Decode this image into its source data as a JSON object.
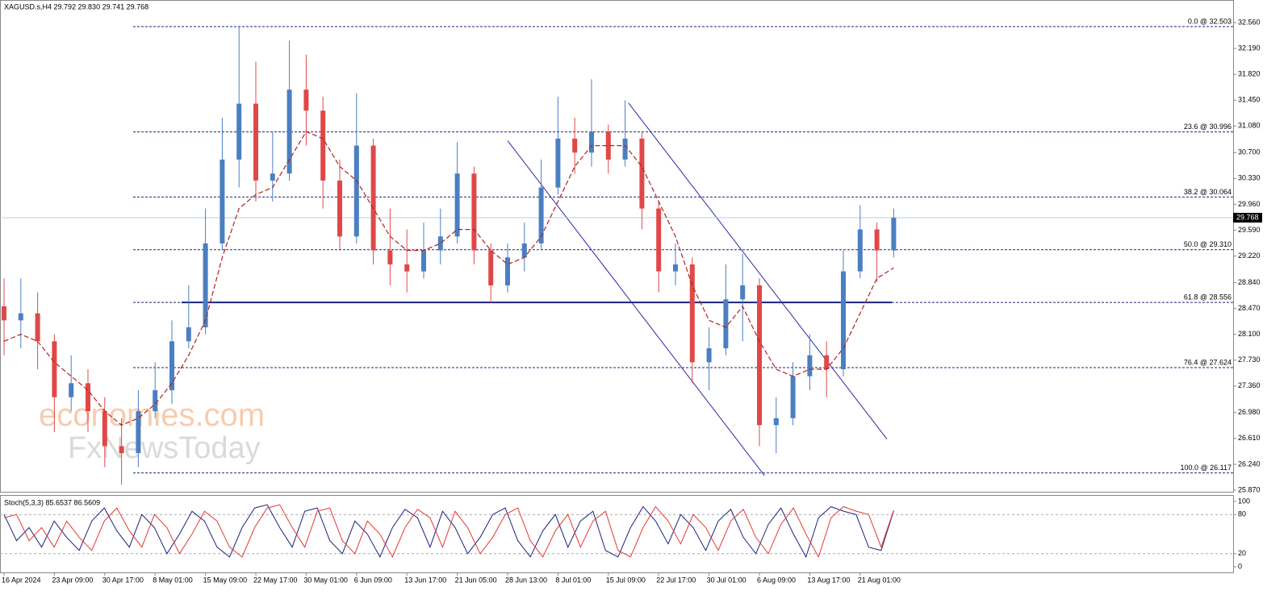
{
  "chart_data": {
    "type": "candlestick",
    "title": "XAGUSD.s,H4  29.792 29.830 29.741 29.768",
    "watermark": [
      "economies.com",
      "FxNewsToday"
    ],
    "categories": [
      "16 Apr 2024",
      null,
      null,
      "23 Apr 09:00",
      null,
      null,
      "30 Apr 17:00",
      null,
      null,
      "8 May 01:00",
      null,
      null,
      "15 May 09:00",
      null,
      null,
      "22 May 17:00",
      null,
      null,
      "30 May 01:00",
      null,
      null,
      "6 Jun 09:00",
      null,
      null,
      "13 Jun 17:00",
      null,
      null,
      "21 Jun 05:00",
      null,
      null,
      "28 Jun 13:00",
      null,
      null,
      "8 Jul 01:00",
      null,
      null,
      "15 Jul 09:00",
      null,
      null,
      "22 Jul 17:00",
      null,
      null,
      "30 Jul 01:00",
      null,
      null,
      "6 Aug 09:00",
      null,
      null,
      "13 Aug 17:00",
      null,
      null,
      "21 Aug 01:00",
      null,
      null
    ],
    "ohlc": [
      [
        28.5,
        28.9,
        27.8,
        28.3
      ],
      [
        28.3,
        28.9,
        27.9,
        28.4
      ],
      [
        28.4,
        28.7,
        27.6,
        28.0
      ],
      [
        28.0,
        28.1,
        26.7,
        27.2
      ],
      [
        27.2,
        27.8,
        27.0,
        27.4
      ],
      [
        27.4,
        27.6,
        26.7,
        27.0
      ],
      [
        27.0,
        27.2,
        26.2,
        26.5
      ],
      [
        26.5,
        26.9,
        25.95,
        26.4
      ],
      [
        26.4,
        27.3,
        26.2,
        27.0
      ],
      [
        27.0,
        27.7,
        26.9,
        27.3
      ],
      [
        27.3,
        28.3,
        27.1,
        28.0
      ],
      [
        28.0,
        28.8,
        27.9,
        28.2
      ],
      [
        28.2,
        29.9,
        28.1,
        29.4
      ],
      [
        29.4,
        31.2,
        29.3,
        30.6
      ],
      [
        30.6,
        32.5,
        30.2,
        31.4
      ],
      [
        31.4,
        32.0,
        30.0,
        30.3
      ],
      [
        30.3,
        31.0,
        30.0,
        30.4
      ],
      [
        30.4,
        32.3,
        30.3,
        31.6
      ],
      [
        31.6,
        32.1,
        30.8,
        31.3
      ],
      [
        31.3,
        31.5,
        29.9,
        30.3
      ],
      [
        30.3,
        30.6,
        29.3,
        29.5
      ],
      [
        29.5,
        31.55,
        29.4,
        30.8
      ],
      [
        30.8,
        30.9,
        29.1,
        29.3
      ],
      [
        29.3,
        29.9,
        28.8,
        29.1
      ],
      [
        29.1,
        29.6,
        28.7,
        29.0
      ],
      [
        29.0,
        29.7,
        28.9,
        29.3
      ],
      [
        29.3,
        29.9,
        29.1,
        29.5
      ],
      [
        29.5,
        30.85,
        29.4,
        30.4
      ],
      [
        30.4,
        30.5,
        29.1,
        29.3
      ],
      [
        29.3,
        29.4,
        28.55,
        28.8
      ],
      [
        28.8,
        29.4,
        28.7,
        29.2
      ],
      [
        29.2,
        29.7,
        29.0,
        29.4
      ],
      [
        29.4,
        30.6,
        29.3,
        30.2
      ],
      [
        30.2,
        31.5,
        30.1,
        30.9
      ],
      [
        30.9,
        31.2,
        30.4,
        30.7
      ],
      [
        30.7,
        31.75,
        30.5,
        31.0
      ],
      [
        31.0,
        31.1,
        30.4,
        30.6
      ],
      [
        30.6,
        31.45,
        30.5,
        30.9
      ],
      [
        30.9,
        31.0,
        29.6,
        29.9
      ],
      [
        29.9,
        30.0,
        28.7,
        29.0
      ],
      [
        29.0,
        29.4,
        28.8,
        29.1
      ],
      [
        29.1,
        29.2,
        27.4,
        27.7
      ],
      [
        27.7,
        28.2,
        27.3,
        27.9
      ],
      [
        27.9,
        29.1,
        27.8,
        28.6
      ],
      [
        28.6,
        29.25,
        28.0,
        28.8
      ],
      [
        28.8,
        28.9,
        26.5,
        26.8
      ],
      [
        26.8,
        27.2,
        26.4,
        26.9
      ],
      [
        26.9,
        27.7,
        26.8,
        27.5
      ],
      [
        27.5,
        28.1,
        27.3,
        27.8
      ],
      [
        27.8,
        28.0,
        27.2,
        27.6
      ],
      [
        27.6,
        29.3,
        27.5,
        29.0
      ],
      [
        29.0,
        29.95,
        28.9,
        29.6
      ],
      [
        29.6,
        29.7,
        28.85,
        29.3
      ],
      [
        29.3,
        29.9,
        29.2,
        29.768
      ]
    ],
    "up_color": "#4a7fc1",
    "down_color": "#e04848",
    "moving_average": {
      "color": "#b22222",
      "values": [
        28.0,
        28.1,
        28.0,
        27.7,
        27.5,
        27.3,
        27.0,
        26.8,
        26.9,
        27.1,
        27.4,
        27.8,
        28.3,
        29.2,
        29.9,
        30.1,
        30.2,
        30.6,
        31.0,
        30.9,
        30.5,
        30.3,
        29.9,
        29.5,
        29.3,
        29.3,
        29.4,
        29.6,
        29.6,
        29.3,
        29.1,
        29.2,
        29.5,
        30.0,
        30.5,
        30.8,
        30.8,
        30.8,
        30.5,
        30.0,
        29.5,
        28.8,
        28.3,
        28.2,
        28.5,
        28.0,
        27.6,
        27.5,
        27.6,
        27.6,
        27.9,
        28.4,
        28.9,
        29.05
      ]
    },
    "ylim": [
      25.847,
      32.883
    ],
    "yticks": [
      {
        "value": 25.87,
        "label": "25.870"
      },
      {
        "value": 26.24,
        "label": "26.240"
      },
      {
        "value": 26.61,
        "label": "26.610"
      },
      {
        "value": 26.98,
        "label": "26.980"
      },
      {
        "value": 27.36,
        "label": "27.360"
      },
      {
        "value": 27.73,
        "label": "27.730"
      },
      {
        "value": 28.1,
        "label": "28.100"
      },
      {
        "value": 28.47,
        "label": "28.470"
      },
      {
        "value": 28.84,
        "label": "28.840"
      },
      {
        "value": 29.22,
        "label": "29.220"
      },
      {
        "value": 29.59,
        "label": "29.590"
      },
      {
        "value": 29.96,
        "label": "29.960"
      },
      {
        "value": 30.33,
        "label": "30.330"
      },
      {
        "value": 30.7,
        "label": "30.700"
      },
      {
        "value": 31.08,
        "label": "31.080"
      },
      {
        "value": 31.45,
        "label": "31.450"
      },
      {
        "value": 31.82,
        "label": "31.820"
      },
      {
        "value": 32.19,
        "label": "32.190"
      },
      {
        "value": 32.56,
        "label": "32.560"
      }
    ],
    "last_price": 29.768,
    "fib_color": "#1a237e",
    "fib_levels": [
      {
        "value": 32.503,
        "label": "0.0 @ 32.503"
      },
      {
        "value": 30.996,
        "label": "23.6 @ 30.996"
      },
      {
        "value": 30.064,
        "label": "38.2 @ 30.064"
      },
      {
        "value": 29.31,
        "label": "50.0 @ 29.310"
      },
      {
        "value": 28.556,
        "label": "61.8 @ 28.556"
      },
      {
        "value": 27.624,
        "label": "76.4 @ 27.624"
      },
      {
        "value": 26.117,
        "label": "100.0 @ 26.117"
      }
    ],
    "support": 28.556,
    "trendlines": [
      {
        "x": [
          30,
          45.3
        ],
        "y": [
          30.87,
          26.08
        ]
      },
      {
        "x": [
          37.2,
          52.6
        ],
        "y": [
          31.41,
          26.6
        ]
      }
    ],
    "stochastic": {
      "label": "Stoch(5,3,3) 85.6537 86.5609",
      "ylim": [
        0,
        100
      ],
      "yticks": [
        0,
        20,
        80,
        100
      ],
      "levels": [
        20,
        80
      ],
      "series": [
        {
          "name": "main",
          "color": "#1a237e",
          "values": [
            80,
            40,
            60,
            30,
            70,
            45,
            25,
            70,
            90,
            55,
            30,
            80,
            60,
            20,
            50,
            85,
            70,
            30,
            15,
            60,
            90,
            95,
            60,
            30,
            85,
            90,
            40,
            20,
            70,
            50,
            15,
            60,
            88,
            75,
            30,
            85,
            60,
            20,
            45,
            80,
            90,
            40,
            15,
            55,
            80,
            30,
            70,
            85,
            25,
            15,
            60,
            92,
            70,
            35,
            80,
            60,
            25,
            70,
            88,
            45,
            20,
            65,
            90,
            50,
            15,
            75,
            92,
            85,
            80,
            30,
            25,
            85.65
          ]
        },
        {
          "name": "signal",
          "color": "#e53935",
          "values": [
            75,
            80,
            40,
            60,
            30,
            70,
            45,
            25,
            70,
            90,
            55,
            30,
            80,
            60,
            20,
            50,
            85,
            70,
            30,
            15,
            60,
            90,
            95,
            60,
            30,
            85,
            90,
            40,
            20,
            70,
            50,
            15,
            60,
            88,
            75,
            30,
            85,
            60,
            20,
            45,
            80,
            90,
            40,
            15,
            55,
            80,
            30,
            70,
            85,
            25,
            15,
            60,
            92,
            70,
            35,
            80,
            60,
            25,
            70,
            88,
            45,
            20,
            65,
            90,
            50,
            15,
            75,
            92,
            85,
            80,
            30,
            86.56
          ]
        }
      ]
    }
  }
}
